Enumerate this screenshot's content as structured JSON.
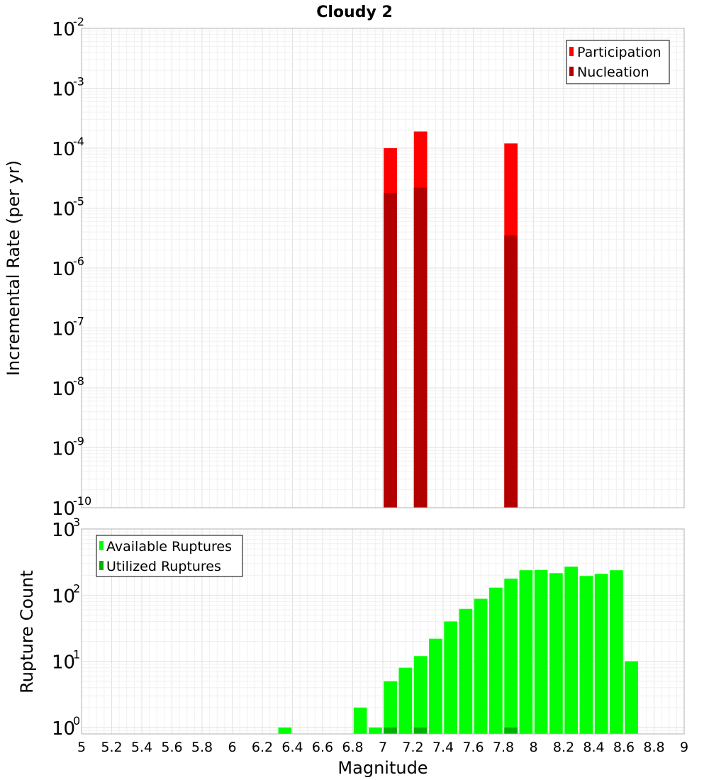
{
  "chart_data": [
    {
      "type": "bar",
      "title": "Cloudy 2",
      "xlabel": "",
      "ylabel": "Incremental Rate (per yr)",
      "xlim": [
        5,
        9
      ],
      "ylim": [
        1e-10,
        0.01
      ],
      "yscale": "log",
      "grid": true,
      "legend_position": "top-right",
      "y_ticks": [
        {
          "base": "10",
          "exp": "-2"
        },
        {
          "base": "10",
          "exp": "-3"
        },
        {
          "base": "10",
          "exp": "-4"
        },
        {
          "base": "10",
          "exp": "-5"
        },
        {
          "base": "10",
          "exp": "-6"
        },
        {
          "base": "10",
          "exp": "-7"
        },
        {
          "base": "10",
          "exp": "-8"
        },
        {
          "base": "10",
          "exp": "-9"
        },
        {
          "base": "10",
          "exp": "-10"
        }
      ],
      "series": [
        {
          "name": "Participation",
          "color": "#ff0000",
          "points": [
            {
              "x": 7.05,
              "y": 0.0001
            },
            {
              "x": 7.25,
              "y": 0.00019
            },
            {
              "x": 7.85,
              "y": 0.00012
            }
          ]
        },
        {
          "name": "Nucleation",
          "color": "#b20000",
          "points": [
            {
              "x": 7.05,
              "y": 1.8e-05
            },
            {
              "x": 7.25,
              "y": 2.2e-05
            },
            {
              "x": 7.85,
              "y": 3.5e-06
            }
          ]
        }
      ]
    },
    {
      "type": "bar",
      "title": "",
      "xlabel": "Magnitude",
      "ylabel": "Rupture Count",
      "xlim": [
        5,
        9
      ],
      "ylim": [
        0.8,
        1000
      ],
      "yscale": "log",
      "grid": true,
      "legend_position": "top-left",
      "x_ticks": [
        "5",
        "5.2",
        "5.4",
        "5.6",
        "5.8",
        "6",
        "6.2",
        "6.4",
        "6.6",
        "6.8",
        "7",
        "7.2",
        "7.4",
        "7.6",
        "7.8",
        "8",
        "8.2",
        "8.4",
        "8.6",
        "8.8",
        "9"
      ],
      "y_ticks": [
        {
          "base": "10",
          "exp": "3",
          "value": 1000
        },
        {
          "base": "10",
          "exp": "2",
          "value": 100
        },
        {
          "base": "10",
          "exp": "1",
          "value": 10
        },
        {
          "base": "10",
          "exp": "0",
          "value": 1
        }
      ],
      "series": [
        {
          "name": "Available Ruptures",
          "color": "#00ff00",
          "points": [
            {
              "x": 6.35,
              "y": 1
            },
            {
              "x": 6.85,
              "y": 2
            },
            {
              "x": 6.95,
              "y": 1
            },
            {
              "x": 7.05,
              "y": 5
            },
            {
              "x": 7.15,
              "y": 8
            },
            {
              "x": 7.25,
              "y": 12
            },
            {
              "x": 7.35,
              "y": 22
            },
            {
              "x": 7.45,
              "y": 40
            },
            {
              "x": 7.55,
              "y": 62
            },
            {
              "x": 7.65,
              "y": 88
            },
            {
              "x": 7.75,
              "y": 130
            },
            {
              "x": 7.85,
              "y": 178
            },
            {
              "x": 7.95,
              "y": 238
            },
            {
              "x": 8.05,
              "y": 240
            },
            {
              "x": 8.15,
              "y": 215
            },
            {
              "x": 8.25,
              "y": 270
            },
            {
              "x": 8.35,
              "y": 195
            },
            {
              "x": 8.45,
              "y": 210
            },
            {
              "x": 8.55,
              "y": 238
            },
            {
              "x": 8.65,
              "y": 10
            }
          ]
        },
        {
          "name": "Utilized Ruptures",
          "color": "#00b200",
          "points": [
            {
              "x": 7.05,
              "y": 1
            },
            {
              "x": 7.25,
              "y": 1
            },
            {
              "x": 7.85,
              "y": 1
            }
          ]
        }
      ]
    }
  ]
}
